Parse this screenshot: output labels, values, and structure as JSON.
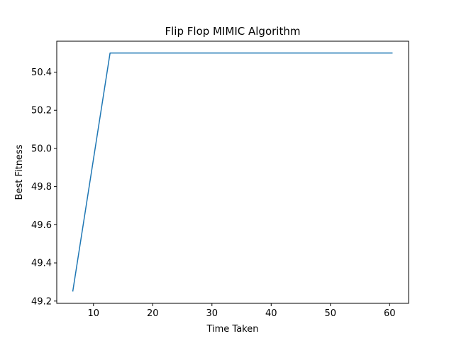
{
  "chart_data": {
    "type": "line",
    "title": "Flip Flop MIMIC Algorithm",
    "xlabel": "Time Taken",
    "ylabel": "Best Fitness",
    "xlim": [
      3.8,
      63.2
    ],
    "ylim": [
      49.188,
      50.562
    ],
    "xticks": [
      10,
      20,
      30,
      40,
      50,
      60
    ],
    "yticks": [
      49.2,
      49.4,
      49.6,
      49.8,
      50.0,
      50.2,
      50.4
    ],
    "ytick_labels": [
      "49.2",
      "49.4",
      "49.6",
      "49.8",
      "50.0",
      "50.2",
      "50.4"
    ],
    "grid": false,
    "series": [
      {
        "color": "#1f77b4",
        "x": [
          6.5,
          12.8,
          60.5
        ],
        "y": [
          49.25,
          50.5,
          50.5
        ]
      }
    ]
  }
}
